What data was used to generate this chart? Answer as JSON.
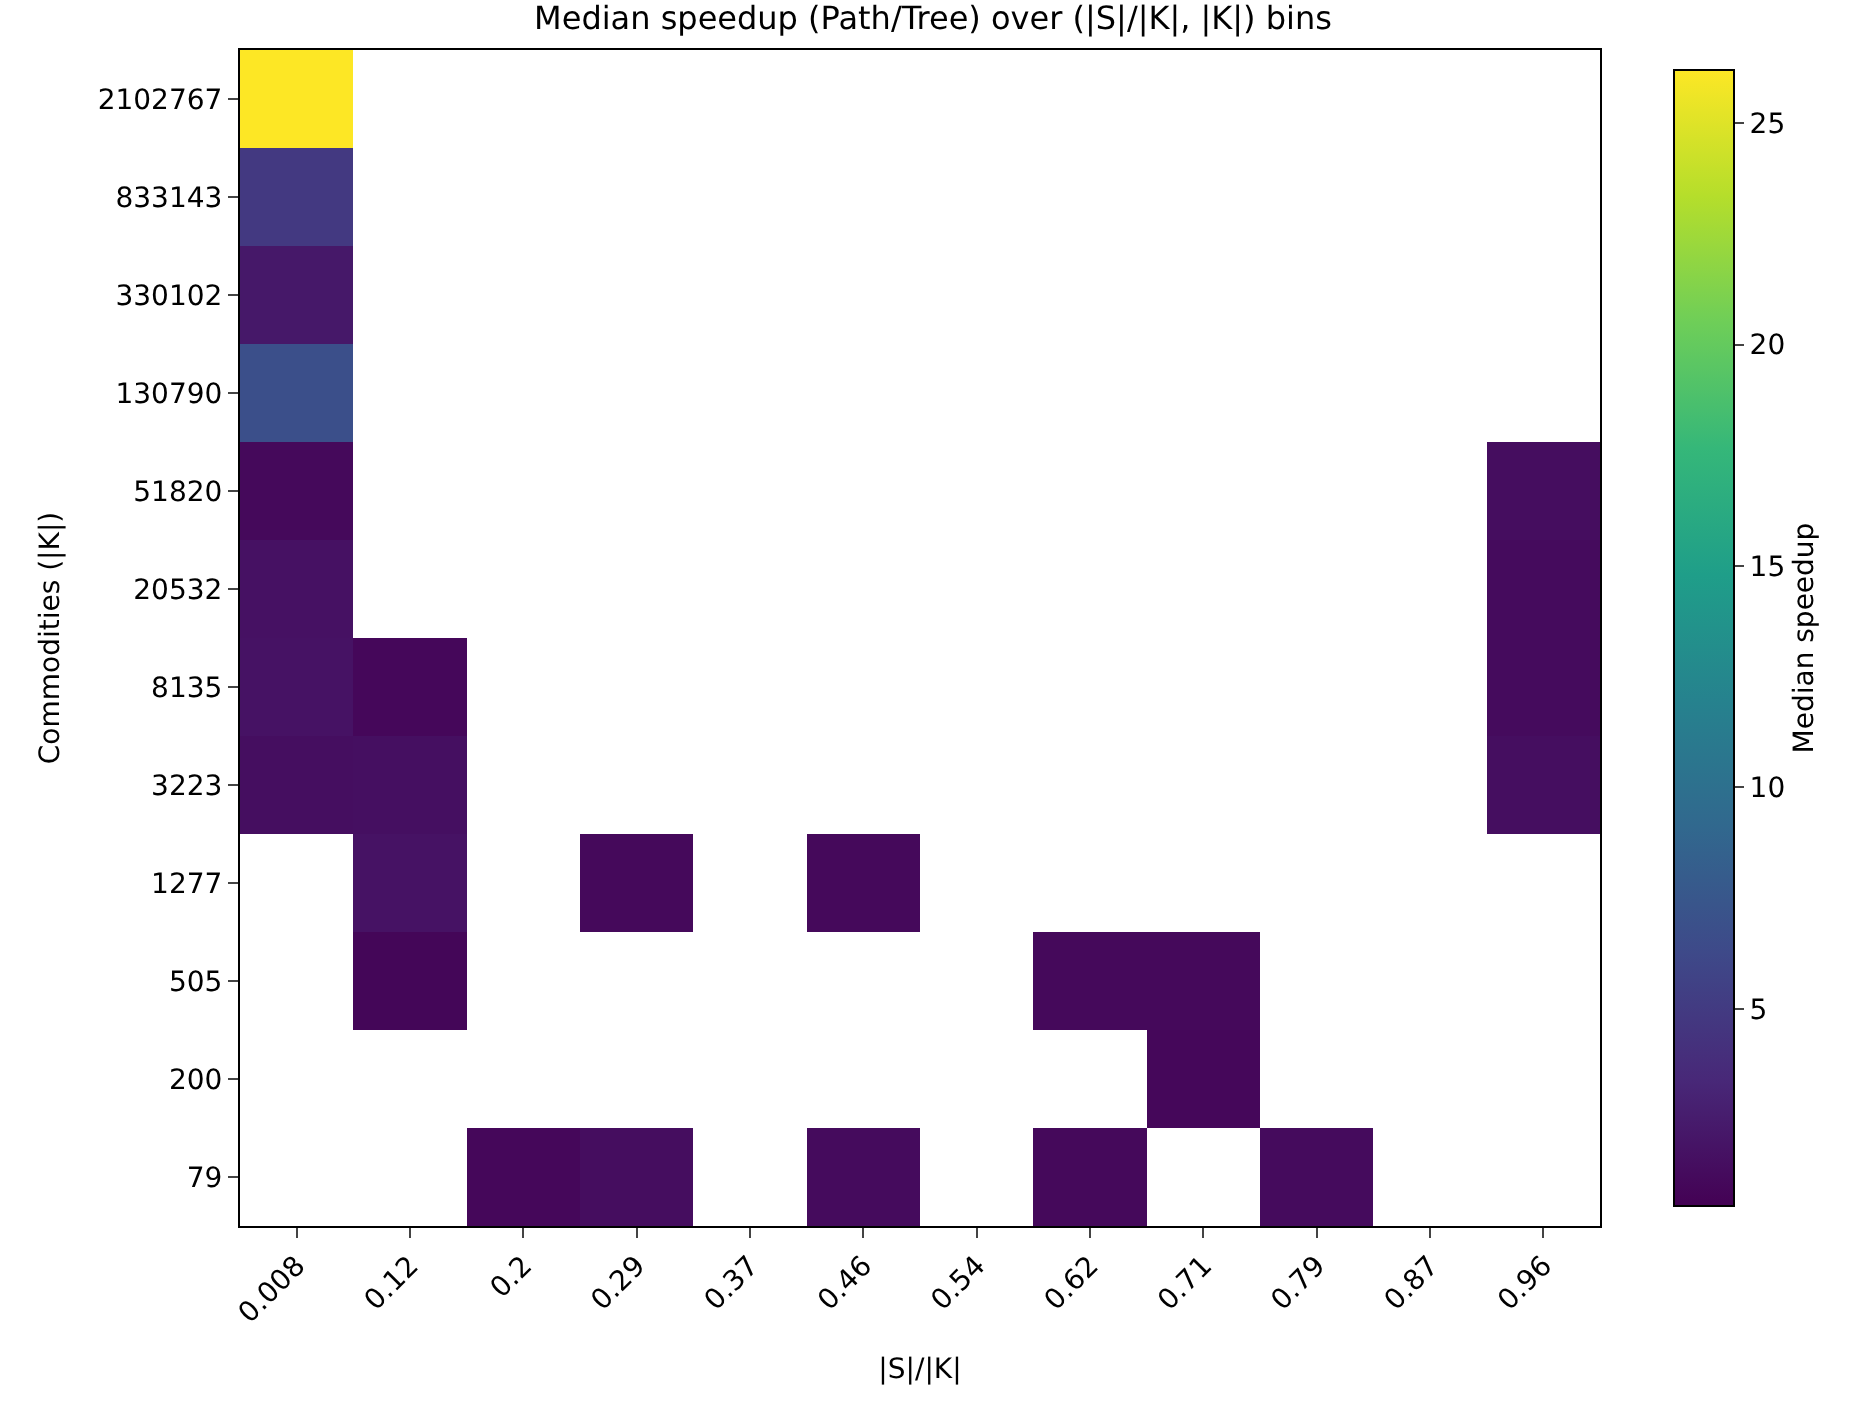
{
  "chart_data": {
    "type": "heatmap",
    "title": "Median speedup (Path/Tree) over (|S|/|K|, |K|) bins",
    "xlabel": "|S|/|K|",
    "ylabel": "Commodities (|K|)",
    "clabel": "Median speedup",
    "categories": [
      "0.008",
      "0.12",
      "0.2",
      "0.29",
      "0.37",
      "0.46",
      "0.54",
      "0.62",
      "0.71",
      "0.79",
      "0.87",
      "0.96"
    ],
    "y_categories": [
      "2102767",
      "833143",
      "330102",
      "130790",
      "51820",
      "20532",
      "8135",
      "3223",
      "1277",
      "505",
      "200",
      "79"
    ],
    "cells": [
      [
        26.2,
        null,
        null,
        null,
        null,
        null,
        null,
        null,
        null,
        null,
        null,
        null
      ],
      [
        4.9,
        null,
        null,
        null,
        null,
        null,
        null,
        null,
        null,
        null,
        null,
        null
      ],
      [
        2.2,
        null,
        null,
        null,
        null,
        null,
        null,
        null,
        null,
        null,
        null,
        null
      ],
      [
        6.8,
        null,
        null,
        null,
        null,
        null,
        null,
        null,
        null,
        null,
        null,
        null
      ],
      [
        1.1,
        null,
        null,
        null,
        null,
        null,
        null,
        null,
        null,
        null,
        null,
        1.4
      ],
      [
        1.7,
        null,
        null,
        null,
        null,
        null,
        null,
        null,
        null,
        null,
        null,
        1.3
      ],
      [
        1.8,
        1.0,
        null,
        null,
        null,
        null,
        null,
        null,
        null,
        null,
        null,
        1.3
      ],
      [
        1.5,
        1.6,
        null,
        null,
        null,
        null,
        null,
        null,
        null,
        null,
        null,
        1.5
      ],
      [
        null,
        1.8,
        null,
        1.1,
        null,
        1.1,
        null,
        null,
        null,
        null,
        null,
        null
      ],
      [
        null,
        0.9,
        null,
        null,
        null,
        null,
        null,
        1.1,
        1.1,
        null,
        null,
        null
      ],
      [
        null,
        null,
        null,
        null,
        null,
        null,
        null,
        null,
        1.0,
        null,
        null,
        null
      ],
      [
        null,
        null,
        1.0,
        1.4,
        null,
        1.3,
        null,
        1.1,
        null,
        1.3,
        null,
        null
      ]
    ],
    "clim": [
      0.55,
      26.2
    ],
    "cticks": [
      5,
      10,
      15,
      20,
      25
    ]
  }
}
